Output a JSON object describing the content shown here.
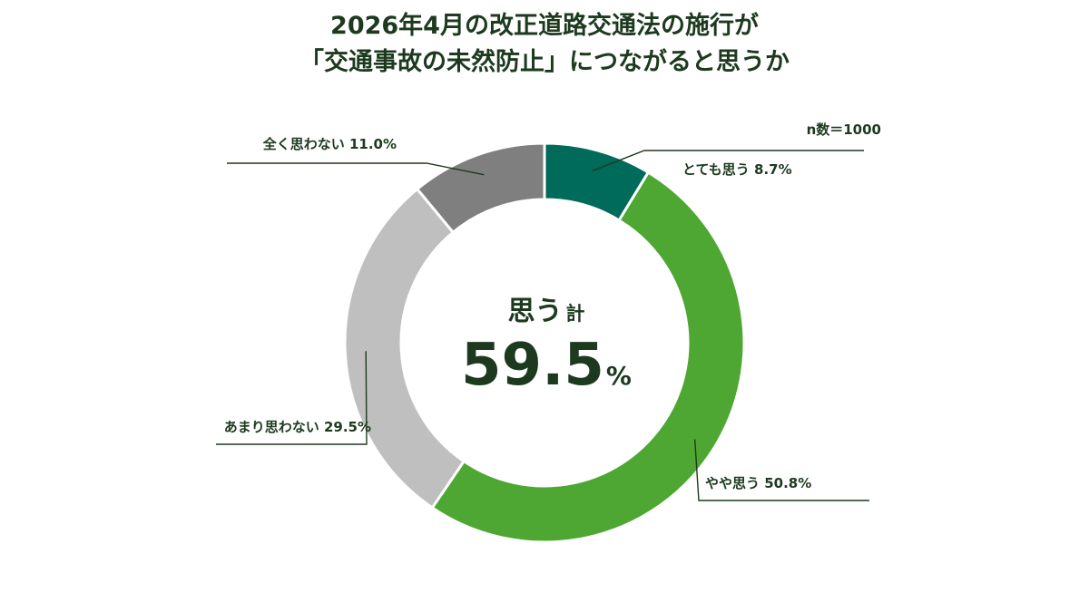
{
  "title": {
    "line1": "2026年4月の改正道路交通法の施行が",
    "line2": "「交通事故の未然防止」につながると思うか"
  },
  "sample_note": "n数＝1000",
  "center": {
    "head": "思う",
    "head_suffix": "計",
    "value": "59.5",
    "unit": "%"
  },
  "chart_data": {
    "type": "pie",
    "donut": true,
    "categories": [
      "とても思う",
      "やや思う",
      "あまり思わない",
      "全く思わない"
    ],
    "values": [
      8.7,
      50.8,
      29.5,
      11.0
    ],
    "labels": [
      "とても思う 8.7%",
      "やや思う 50.8%",
      "あまり思わない 29.5%",
      "全く思わない 11.0%"
    ],
    "colors": [
      "#006b5a",
      "#4ea732",
      "#bfbfbf",
      "#7f7f7f"
    ],
    "start": "12 o'clock",
    "direction": "clockwise"
  }
}
